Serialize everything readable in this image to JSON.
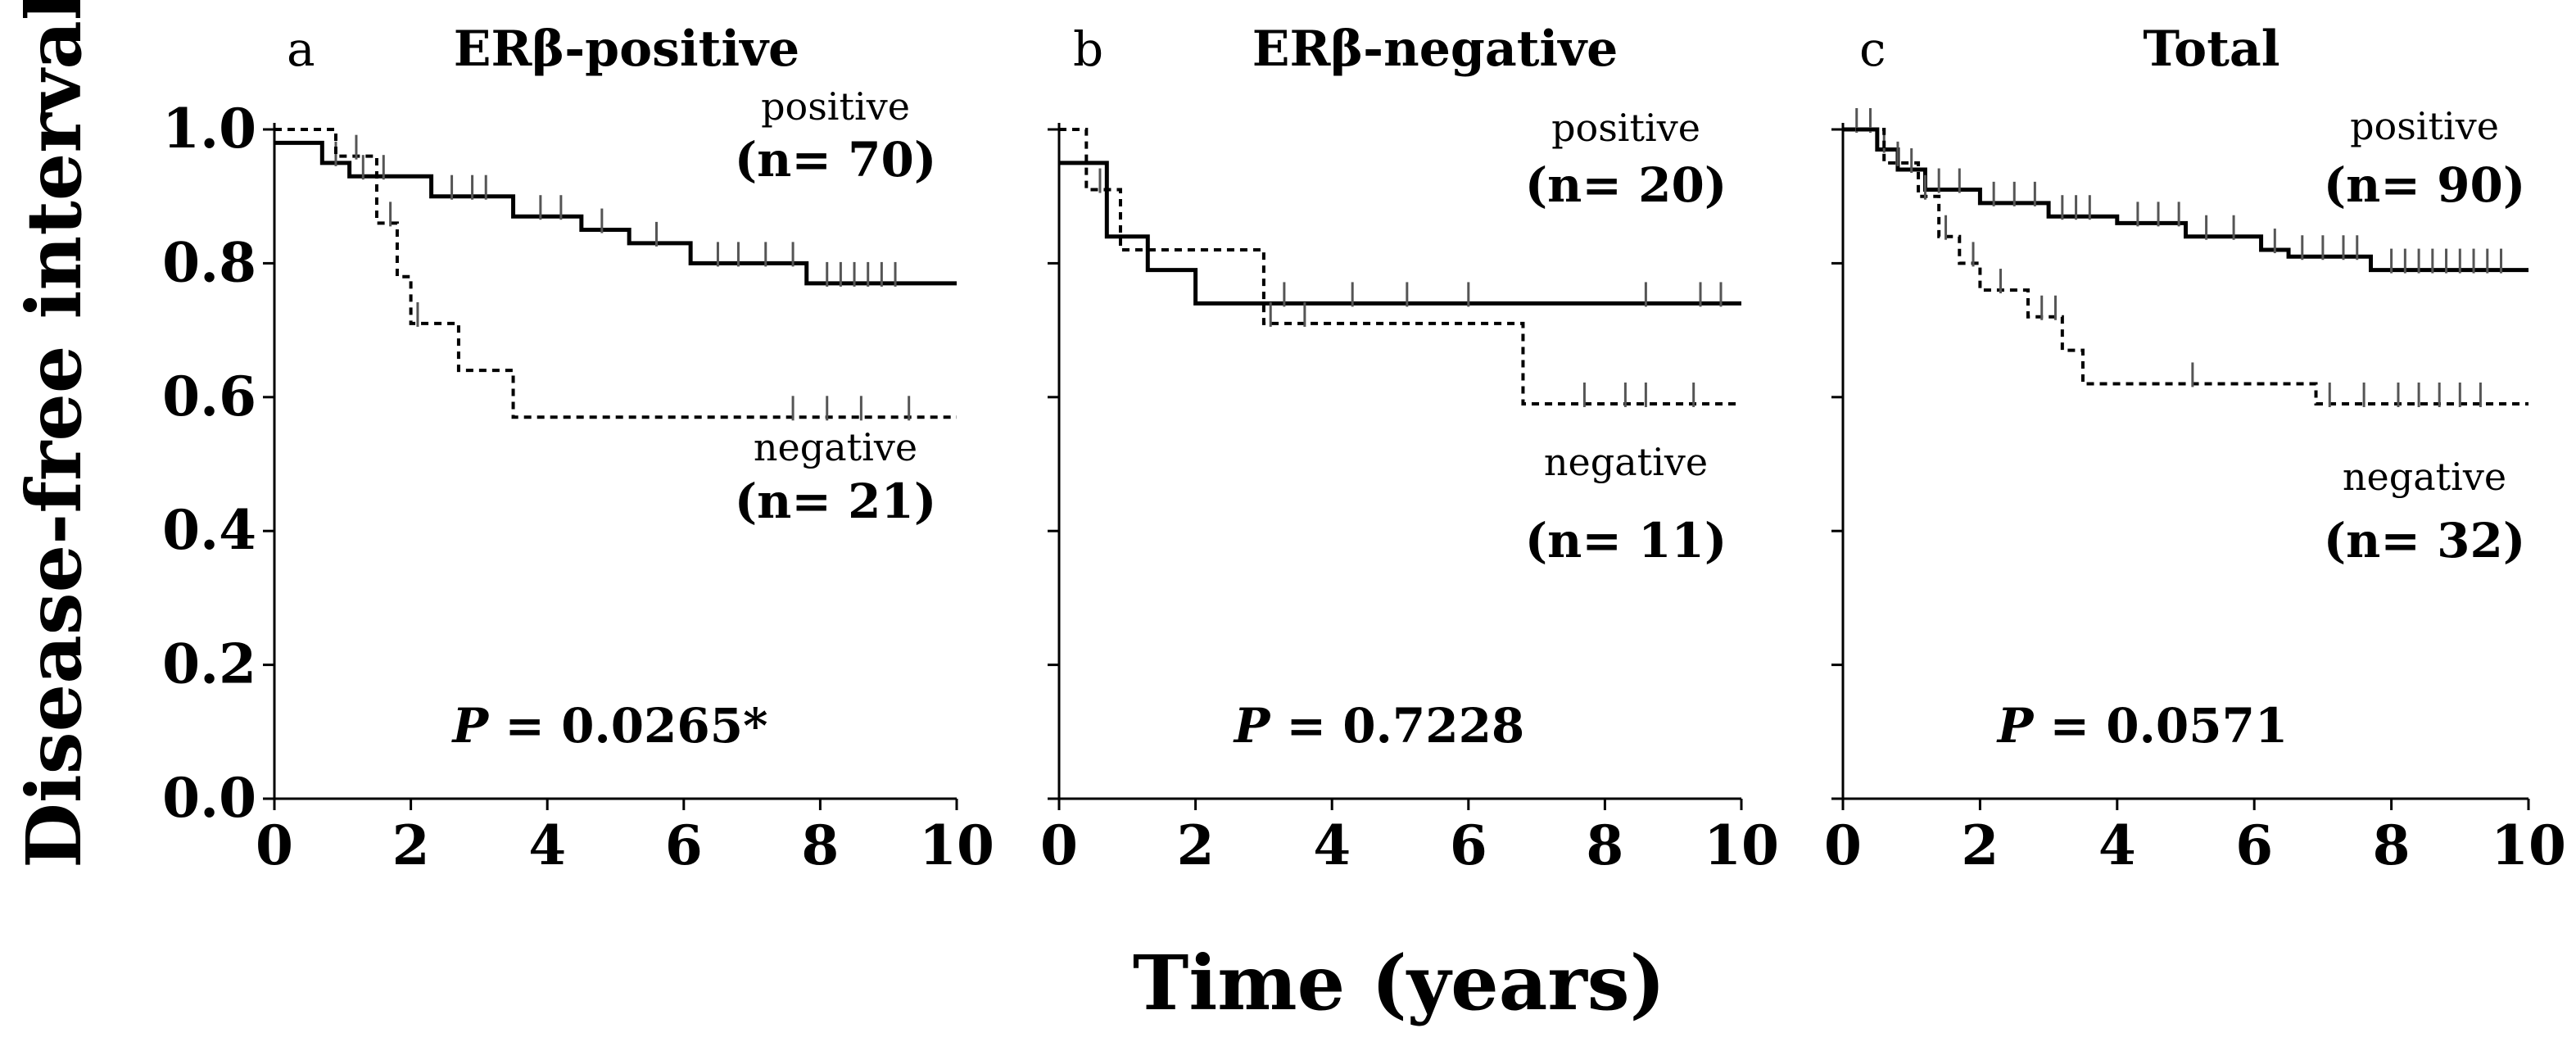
{
  "figure": {
    "ylabel": "Disease-free interval",
    "xlabel": "Time (years)"
  },
  "colors": {
    "line": "#000000",
    "censor": "#555555",
    "background": "#ffffff"
  },
  "chart_data": [
    {
      "type": "line",
      "panel_letter": "a",
      "title": "ERβ-positive",
      "xlabel": "Time (years)",
      "ylabel": "Disease-free interval",
      "xlim": [
        0,
        10
      ],
      "ylim": [
        0,
        1
      ],
      "x_ticks": [
        "0",
        "2",
        "4",
        "6",
        "8",
        "10"
      ],
      "y_ticks": [
        "0.0",
        "0.2",
        "0.4",
        "0.6",
        "0.8",
        "1.0"
      ],
      "p_label": "P",
      "p_text": " = 0.0265*",
      "series": [
        {
          "name": "positive",
          "n_label": "(n= 70)",
          "style": "solid",
          "steps": [
            [
              0,
              0.98
            ],
            [
              0.7,
              0.95
            ],
            [
              1.1,
              0.93
            ],
            [
              2.3,
              0.9
            ],
            [
              3.5,
              0.87
            ],
            [
              4.5,
              0.85
            ],
            [
              5.2,
              0.83
            ],
            [
              6.1,
              0.8
            ],
            [
              7.8,
              0.77
            ],
            [
              10,
              0.77
            ]
          ],
          "censors": [
            0.9,
            1.3,
            1.6,
            2.6,
            2.9,
            3.1,
            3.9,
            4.2,
            4.8,
            5.6,
            6.5,
            6.8,
            7.2,
            7.6,
            8.1,
            8.3,
            8.5,
            8.7,
            8.9,
            9.1
          ]
        },
        {
          "name": "negative",
          "n_label": "(n= 21)",
          "style": "dashed",
          "steps": [
            [
              0,
              1.0
            ],
            [
              0.9,
              0.96
            ],
            [
              1.5,
              0.86
            ],
            [
              1.8,
              0.78
            ],
            [
              2.0,
              0.71
            ],
            [
              2.7,
              0.64
            ],
            [
              3.5,
              0.57
            ],
            [
              10,
              0.57
            ]
          ],
          "censors": [
            1.2,
            1.7,
            2.1,
            7.6,
            8.1,
            8.6,
            9.3
          ]
        }
      ]
    },
    {
      "type": "line",
      "panel_letter": "b",
      "title": "ERβ-negative",
      "xlabel": "Time (years)",
      "ylabel": "Disease-free interval",
      "xlim": [
        0,
        10
      ],
      "ylim": [
        0,
        1
      ],
      "x_ticks": [
        "0",
        "2",
        "4",
        "6",
        "8",
        "10"
      ],
      "y_ticks": [
        "0.0",
        "0.2",
        "0.4",
        "0.6",
        "0.8",
        "1.0"
      ],
      "p_label": "P",
      "p_text": " = 0.7228",
      "series": [
        {
          "name": "positive",
          "n_label": "(n= 20)",
          "style": "solid",
          "steps": [
            [
              0,
              0.95
            ],
            [
              0.7,
              0.84
            ],
            [
              1.3,
              0.79
            ],
            [
              2.0,
              0.74
            ],
            [
              10,
              0.74
            ]
          ],
          "censors": [
            3.3,
            4.3,
            5.1,
            6.0,
            8.6,
            9.4,
            9.7
          ]
        },
        {
          "name": "negative",
          "n_label": "(n= 11)",
          "style": "dashed",
          "steps": [
            [
              0,
              1.0
            ],
            [
              0.4,
              0.91
            ],
            [
              0.9,
              0.82
            ],
            [
              3.0,
              0.71
            ],
            [
              6.8,
              0.59
            ],
            [
              10,
              0.59
            ]
          ],
          "censors": [
            0.6,
            3.1,
            3.6,
            7.7,
            8.3,
            8.6,
            9.3
          ]
        }
      ]
    },
    {
      "type": "line",
      "panel_letter": "c",
      "title": "Total",
      "xlabel": "Time (years)",
      "ylabel": "Disease-free interval",
      "xlim": [
        0,
        10
      ],
      "ylim": [
        0,
        1
      ],
      "x_ticks": [
        "0",
        "2",
        "4",
        "6",
        "8",
        "10"
      ],
      "y_ticks": [
        "0.0",
        "0.2",
        "0.4",
        "0.6",
        "0.8",
        "1.0"
      ],
      "p_label": "P",
      "p_text": " = 0.0571",
      "series": [
        {
          "name": "positive",
          "n_label": "(n= 90)",
          "style": "solid",
          "steps": [
            [
              0,
              1.0
            ],
            [
              0.5,
              0.97
            ],
            [
              0.8,
              0.94
            ],
            [
              1.2,
              0.91
            ],
            [
              2.0,
              0.89
            ],
            [
              3.0,
              0.87
            ],
            [
              4.0,
              0.86
            ],
            [
              5.0,
              0.84
            ],
            [
              6.1,
              0.82
            ],
            [
              6.5,
              0.81
            ],
            [
              7.7,
              0.79
            ],
            [
              10,
              0.79
            ]
          ],
          "censors": [
            0.2,
            0.4,
            0.6,
            1.0,
            1.4,
            1.7,
            2.2,
            2.5,
            2.8,
            3.2,
            3.4,
            3.6,
            4.3,
            4.6,
            4.9,
            5.3,
            5.7,
            6.3,
            6.7,
            7.0,
            7.3,
            7.5,
            8.0,
            8.2,
            8.4,
            8.6,
            8.8,
            9.0,
            9.2,
            9.4,
            9.6
          ]
        },
        {
          "name": "negative",
          "n_label": "(n= 32)",
          "style": "dashed",
          "steps": [
            [
              0,
              1.0
            ],
            [
              0.6,
              0.95
            ],
            [
              1.1,
              0.9
            ],
            [
              1.4,
              0.84
            ],
            [
              1.7,
              0.8
            ],
            [
              2.0,
              0.76
            ],
            [
              2.7,
              0.72
            ],
            [
              3.2,
              0.67
            ],
            [
              3.5,
              0.62
            ],
            [
              6.9,
              0.59
            ],
            [
              10,
              0.59
            ]
          ],
          "censors": [
            0.8,
            1.2,
            1.5,
            1.9,
            2.3,
            2.9,
            3.1,
            5.1,
            7.1,
            7.6,
            8.1,
            8.4,
            8.7,
            9.0,
            9.3
          ]
        }
      ]
    }
  ]
}
